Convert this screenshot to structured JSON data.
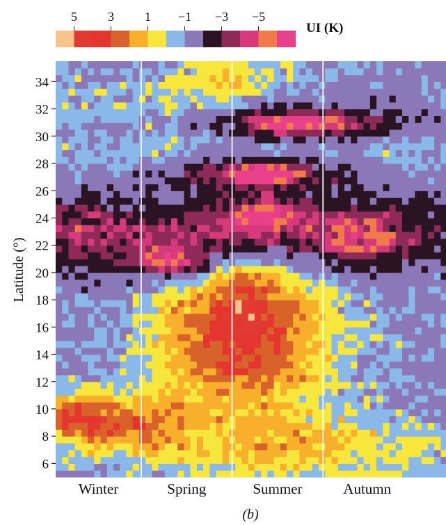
{
  "chart_data": {
    "type": "heatmap",
    "title": "",
    "panel_label": "(b)",
    "xlabel": "",
    "ylabel": "Latitude (°)",
    "x_categories": [
      "Winter",
      "Spring",
      "Summer",
      "Autumn"
    ],
    "y_ticks": [
      "34",
      "32",
      "30",
      "28",
      "26",
      "24",
      "22",
      "20",
      "18",
      "16",
      "14",
      "12",
      "10",
      "8",
      "6"
    ],
    "ylim": [
      5,
      35.5
    ],
    "grid": false,
    "colorbar": {
      "label": "UI (K)",
      "placement": "top-left",
      "tick_labels": [
        "5",
        "3",
        "1",
        "−1",
        "−3",
        "−5"
      ],
      "bins": [
        6,
        5,
        4,
        3,
        2,
        1,
        -1,
        -2,
        -3,
        -4,
        -5,
        -6,
        -7
      ],
      "colors": [
        "#f8c48a",
        "#e03a32",
        "#e4362e",
        "#d8622a",
        "#f8b02c",
        "#f7e63c",
        "#8ab8e8",
        "#8a78b8",
        "#2a1424",
        "#8e2a58",
        "#d63a7a",
        "#f07a4a",
        "#e8408a"
      ]
    },
    "seasons_boundaries_approx_days": [
      0,
      80,
      165,
      250,
      330
    ],
    "grid_resolution": {
      "days_per_column": 6,
      "degrees_per_row": 0.5
    },
    "blobs": [
      {
        "name": "northern warm cap",
        "center_day": 165,
        "center_lat": 34.3,
        "spread_day": 40,
        "spread_lat": 1.3,
        "amplitude": 2.4
      },
      {
        "name": "summer warm dome",
        "center_day": 175,
        "center_lat": 15.5,
        "spread_day": 60,
        "spread_lat": 4.6,
        "amplitude": 5.2
      },
      {
        "name": "summer hot core",
        "center_day": 178,
        "center_lat": 17.8,
        "spread_day": 22,
        "spread_lat": 2.2,
        "amplitude": 1.6
      },
      {
        "name": "winter warm patch",
        "center_day": 22,
        "center_lat": 9.3,
        "spread_day": 28,
        "spread_lat": 1.4,
        "amplitude": 4.6
      },
      {
        "name": "spring warm patch",
        "center_day": 85,
        "center_lat": 9.0,
        "spread_day": 30,
        "spread_lat": 1.3,
        "amplitude": 2.8
      },
      {
        "name": "low-latitude warm band",
        "center_day": 230,
        "center_lat": 7.0,
        "spread_day": 120,
        "spread_lat": 1.6,
        "amplitude": 2.4
      },
      {
        "name": "subtropical cold band",
        "center_day": 180,
        "center_lat": 22.8,
        "spread_day": 150,
        "spread_lat": 2.0,
        "amplitude": -3.6
      },
      {
        "name": "winter cold core",
        "center_day": 18,
        "center_lat": 22.6,
        "spread_day": 30,
        "spread_lat": 1.8,
        "amplitude": -1.8
      },
      {
        "name": "spring cold core",
        "center_day": 110,
        "center_lat": 21.2,
        "spread_day": 32,
        "spread_lat": 1.2,
        "amplitude": -2.8
      },
      {
        "name": "summer cold core",
        "center_day": 190,
        "center_lat": 24.2,
        "spread_day": 35,
        "spread_lat": 1.3,
        "amplitude": -2.4
      },
      {
        "name": "autumn cold core",
        "center_day": 285,
        "center_lat": 22.5,
        "spread_day": 35,
        "spread_lat": 1.6,
        "amplitude": -2.0
      },
      {
        "name": "summer 27N cold strip",
        "center_day": 190,
        "center_lat": 27.3,
        "spread_day": 55,
        "spread_lat": 0.8,
        "amplitude": -4.6
      },
      {
        "name": "summer 31N cold strip",
        "center_day": 235,
        "center_lat": 31.0,
        "spread_day": 55,
        "spread_lat": 0.9,
        "amplitude": -4.6
      },
      {
        "name": "pink 31N",
        "center_day": 215,
        "center_lat": 31.0,
        "spread_day": 22,
        "spread_lat": 0.4,
        "amplitude": -2.2
      },
      {
        "name": "pink 27N",
        "center_day": 195,
        "center_lat": 27.3,
        "spread_day": 18,
        "spread_lat": 0.5,
        "amplitude": -2.8
      },
      {
        "name": "pink 24N",
        "center_day": 195,
        "center_lat": 24.3,
        "spread_day": 14,
        "spread_lat": 0.5,
        "amplitude": -2.4
      },
      {
        "name": "pink 20.5N",
        "center_day": 112,
        "center_lat": 20.6,
        "spread_day": 16,
        "spread_lat": 0.4,
        "amplitude": -2.4
      },
      {
        "name": "midlatitude blue band",
        "center_day": 150,
        "center_lat": 28.8,
        "spread_day": 200,
        "spread_lat": 0.9,
        "amplitude": 1.0
      },
      {
        "name": "high latitude cool-neutral",
        "center_day": 60,
        "center_lat": 32.5,
        "spread_day": 70,
        "spread_lat": 1.2,
        "amplitude": 1.0
      }
    ],
    "baseline_K": -1.4
  }
}
